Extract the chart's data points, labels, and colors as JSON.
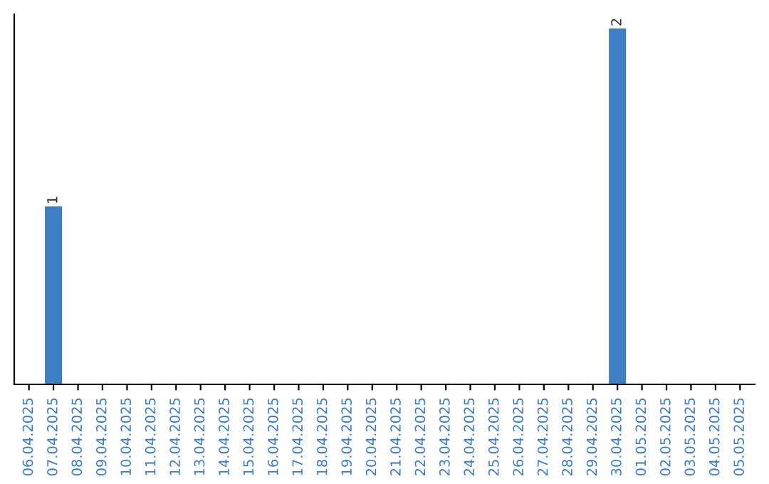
{
  "chart_data": {
    "type": "bar",
    "categories": [
      "06.04.2025",
      "07.04.2025",
      "08.04.2025",
      "09.04.2025",
      "10.04.2025",
      "11.04.2025",
      "12.04.2025",
      "13.04.2025",
      "14.04.2025",
      "15.04.2025",
      "16.04.2025",
      "17.04.2025",
      "18.04.2025",
      "19.04.2025",
      "20.04.2025",
      "21.04.2025",
      "22.04.2025",
      "23.04.2025",
      "24.04.2025",
      "25.04.2025",
      "26.04.2025",
      "27.04.2025",
      "28.04.2025",
      "29.04.2025",
      "30.04.2025",
      "01.05.2025",
      "02.05.2025",
      "03.05.2025",
      "04.05.2025",
      "05.05.2025"
    ],
    "values": [
      0,
      1,
      0,
      0,
      0,
      0,
      0,
      0,
      0,
      0,
      0,
      0,
      0,
      0,
      0,
      0,
      0,
      0,
      0,
      0,
      0,
      0,
      0,
      0,
      2,
      0,
      0,
      0,
      0,
      0
    ],
    "value_labels": [
      null,
      "1",
      null,
      null,
      null,
      null,
      null,
      null,
      null,
      null,
      null,
      null,
      null,
      null,
      null,
      null,
      null,
      null,
      null,
      null,
      null,
      null,
      null,
      null,
      "2",
      null,
      null,
      null,
      null,
      null
    ],
    "color": "#3d7ec4",
    "ylim": [
      0,
      2.08
    ],
    "tick_labels": "x",
    "grid": false,
    "legend": false
  }
}
